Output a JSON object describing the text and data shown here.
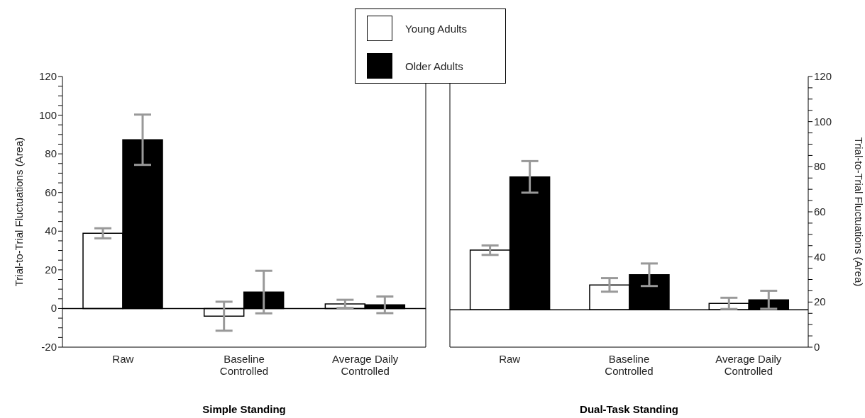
{
  "chart_data": [
    {
      "type": "bar",
      "xlabel": "Simple Standing",
      "ylabel": "Trial-to-Trial Fluctuations (Area)",
      "categories": [
        "Raw",
        "Baseline\nControlled",
        "Average Daily\nControlled"
      ],
      "series": [
        {
          "name": "Young Adults",
          "color": "#ffffff",
          "values": [
            38.9,
            -4,
            2.4
          ],
          "errors": [
            2.6,
            7.5,
            2.1
          ]
        },
        {
          "name": "Older Adults",
          "color": "#000000",
          "values": [
            87.3,
            8.5,
            1.9
          ],
          "errors": [
            13,
            11,
            4.3
          ]
        }
      ],
      "ylim": [
        -20,
        120
      ],
      "yticks": [
        -20,
        {
          "value": -15,
          "label": null
        },
        {
          "value": -10,
          "label": null
        },
        {
          "value": -5,
          "label": null
        },
        0,
        {
          "value": 5,
          "label": null
        },
        {
          "value": 10,
          "label": null
        },
        {
          "value": 15,
          "label": null
        },
        20,
        {
          "value": 25,
          "label": null
        },
        {
          "value": 30,
          "label": null
        },
        {
          "value": 35,
          "label": null
        },
        40,
        {
          "value": 45,
          "label": null
        },
        {
          "value": 50,
          "label": null
        },
        {
          "value": 55,
          "label": null
        },
        60,
        {
          "value": 65,
          "label": null
        },
        {
          "value": 70,
          "label": null
        },
        {
          "value": 75,
          "label": null
        },
        80,
        {
          "value": 85,
          "label": null
        },
        {
          "value": 90,
          "label": null
        },
        {
          "value": 95,
          "label": null
        },
        100,
        {
          "value": 105,
          "label": null
        },
        {
          "value": 110,
          "label": null
        },
        {
          "value": 115,
          "label": null
        },
        120
      ],
      "ref_lines": [
        {
          "axis": "y",
          "value": 0
        }
      ],
      "legend": "top right"
    },
    {
      "type": "bar",
      "xlabel": "Dual-Task Standing",
      "y2label": "Trial-to-Trial Fluctuations (Area)",
      "categories": [
        "Raw",
        "Baseline\nControlled",
        "Average Daily\nControlled"
      ],
      "series": [
        {
          "color": "#ffffff",
          "axis": "y2",
          "base": [
            16.6,
            16.6,
            16.6
          ],
          "values": [
            26.4,
            11,
            2.8
          ],
          "errors": [
            2.1,
            3,
            2.5
          ]
        },
        {
          "color": "#000000",
          "axis": "y2",
          "base": [
            16.6,
            16.6,
            16.6
          ],
          "values": [
            58.9,
            15.5,
            4.4
          ],
          "errors": [
            7,
            5,
            4
          ]
        }
      ],
      "y2lim": [
        0,
        120
      ],
      "y2ticks": [
        0,
        {
          "value": 5,
          "label": null
        },
        {
          "value": 10,
          "label": null
        },
        {
          "value": 15,
          "label": null
        },
        20,
        {
          "value": 25,
          "label": null
        },
        {
          "value": 30,
          "label": null
        },
        {
          "value": 35,
          "label": null
        },
        40,
        {
          "value": 45,
          "label": null
        },
        {
          "value": 50,
          "label": null
        },
        {
          "value": 55,
          "label": null
        },
        60,
        {
          "value": 65,
          "label": null
        },
        {
          "value": 70,
          "label": null
        },
        {
          "value": 75,
          "label": null
        },
        80,
        {
          "value": 85,
          "label": null
        },
        {
          "value": 90,
          "label": null
        },
        {
          "value": 95,
          "label": null
        },
        100,
        {
          "value": 105,
          "label": null
        },
        {
          "value": 110,
          "label": null
        },
        {
          "value": 115,
          "label": null
        },
        120
      ],
      "ref_lines": [
        {
          "axis": "y2",
          "value": 16.6
        }
      ]
    }
  ]
}
